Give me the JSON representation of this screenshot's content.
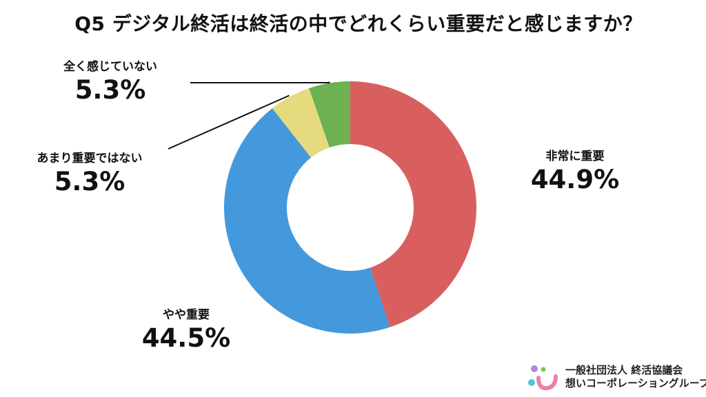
{
  "chart_data": {
    "type": "pie",
    "title": "Q5 デジタル終活は終活の中でどれくらい重要だと感じますか？",
    "categories": [
      "非常に重要",
      "やや重要",
      "あまり重要ではない",
      "全く感じていない"
    ],
    "values": [
      44.9,
      44.5,
      5.3,
      5.3
    ],
    "value_labels": [
      "44.9%",
      "44.5%",
      "5.3%",
      "5.3%"
    ],
    "colors": [
      "#d95f5f",
      "#4499dd",
      "#e6da7e",
      "#6db152"
    ],
    "donut": true,
    "start_angle_deg": 0,
    "direction": "clockwise",
    "legend": "none"
  },
  "logo": {
    "org_name": "一般社団法人 終活協議会",
    "group_name": "想いコーポレーショングループ",
    "colors": [
      "#b388d6",
      "#7cc45a",
      "#4fc3e0",
      "#f07fa8"
    ]
  }
}
